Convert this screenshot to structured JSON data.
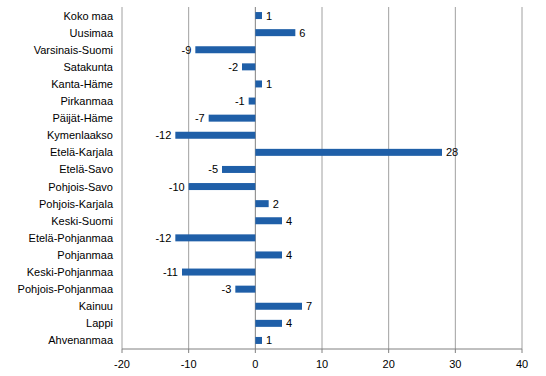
{
  "chart_data": {
    "type": "bar",
    "orientation": "horizontal",
    "categories": [
      "Koko maa",
      "Uusimaa",
      "Varsinais-Suomi",
      "Satakunta",
      "Kanta-Häme",
      "Pirkanmaa",
      "Päijät-Häme",
      "Kymenlaakso",
      "Etelä-Karjala",
      "Etelä-Savo",
      "Pohjois-Savo",
      "Pohjois-Karjala",
      "Keski-Suomi",
      "Etelä-Pohjanmaa",
      "Pohjanmaa",
      "Keski-Pohjanmaa",
      "Pohjois-Pohjanmaa",
      "Kainuu",
      "Lappi",
      "Ahvenanmaa"
    ],
    "values": [
      1,
      6,
      -9,
      -2,
      1,
      -1,
      -7,
      -12,
      28,
      -5,
      -10,
      2,
      4,
      -12,
      4,
      -11,
      -3,
      7,
      4,
      1
    ],
    "color": "#1f5fa8",
    "xlim": [
      -20,
      40
    ],
    "xticks": [
      -20,
      -10,
      0,
      10,
      20,
      30,
      40
    ],
    "grid": true,
    "data_labels": true
  }
}
